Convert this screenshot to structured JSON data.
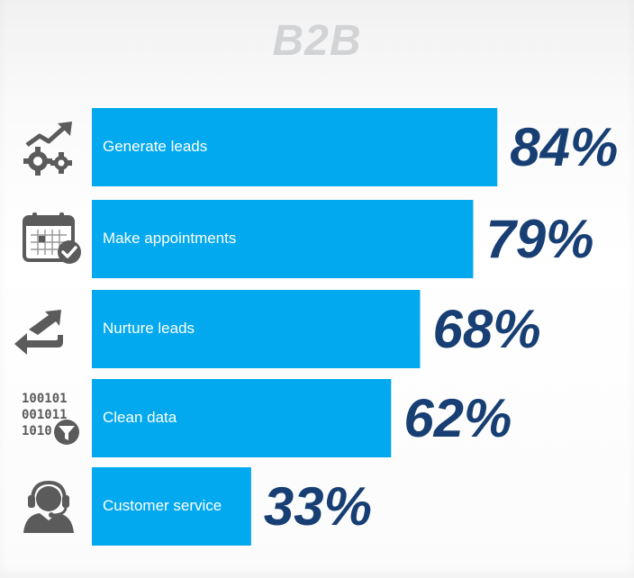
{
  "chart_data": {
    "type": "bar",
    "orientation": "horizontal",
    "title": "B2B",
    "categories": [
      "Generate leads",
      "Make appointments",
      "Nurture leads",
      "Clean data",
      "Customer service"
    ],
    "values": [
      84,
      79,
      68,
      62,
      33
    ],
    "value_labels": [
      "84%",
      "79%",
      "68%",
      "62%",
      "33%"
    ],
    "unit": "%",
    "xlim": [
      0,
      100
    ],
    "grid": false,
    "legend": "none",
    "icons": [
      "gears-growth-icon",
      "calendar-check-icon",
      "arrows-exchange-icon",
      "binary-filter-icon",
      "headset-agent-icon"
    ],
    "colors": {
      "bar": "#03a9ee",
      "value_text": "#183f73",
      "icon": "#5b5b5b",
      "title": "#d2d3d5"
    }
  }
}
